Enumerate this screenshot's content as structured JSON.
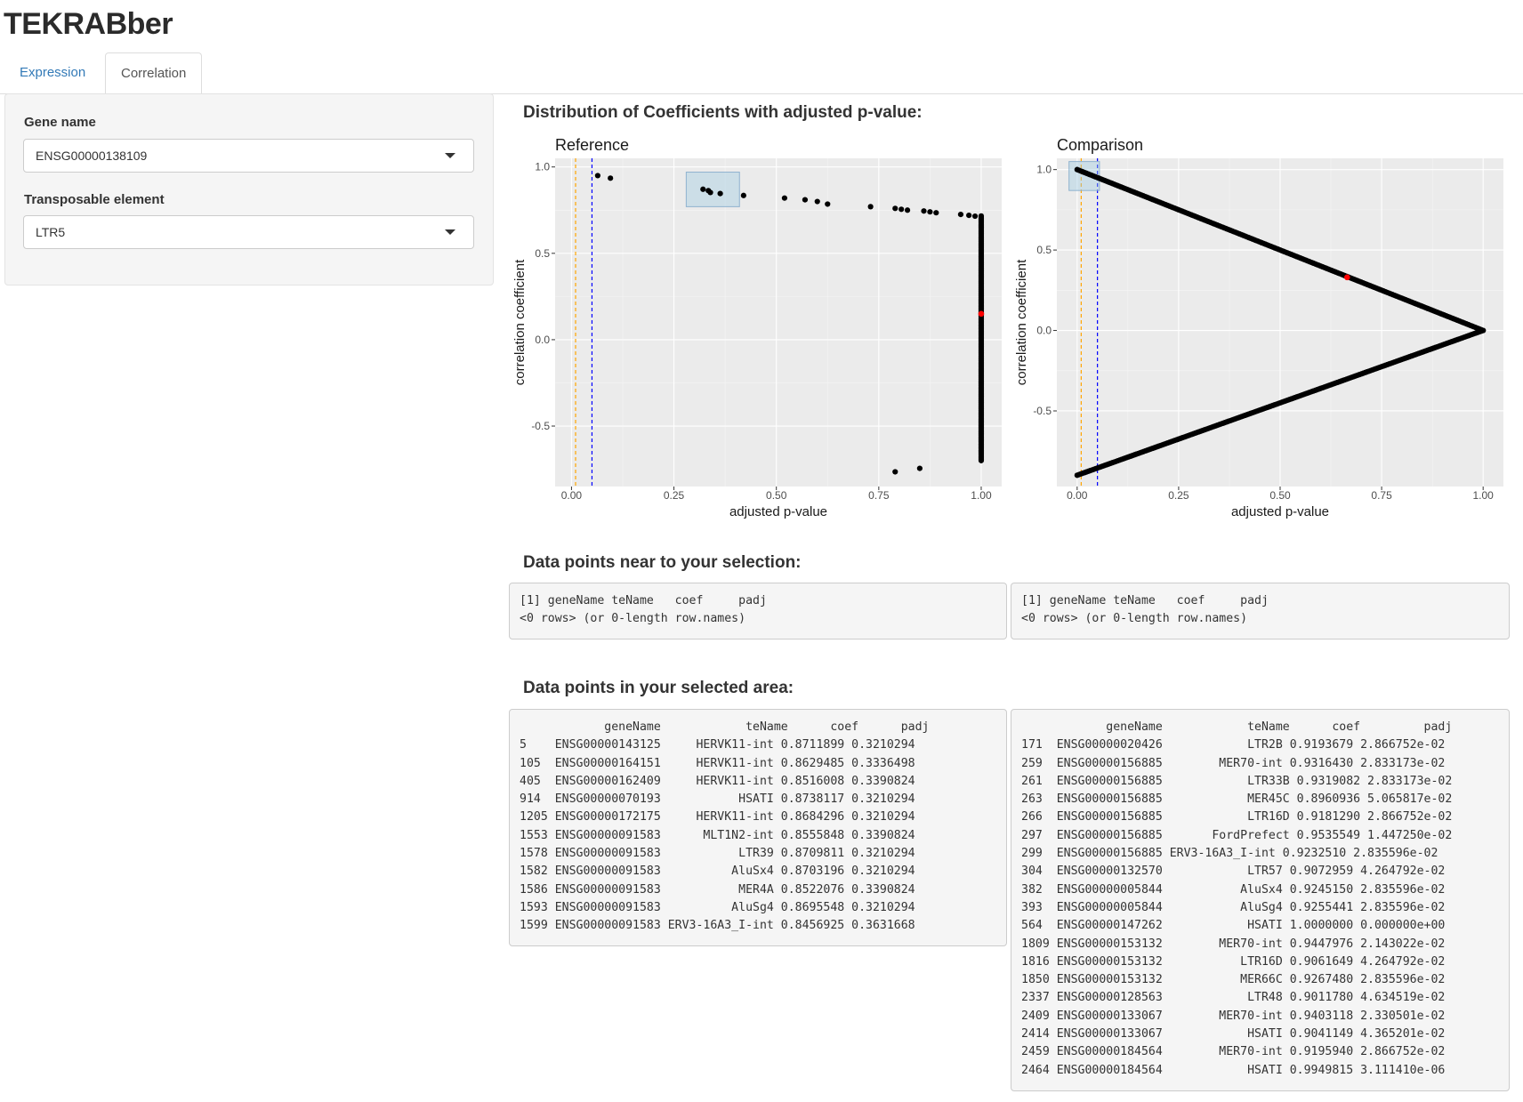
{
  "app": {
    "title": "TEKRABber"
  },
  "tabs": [
    {
      "label": "Expression",
      "active": false
    },
    {
      "label": "Correlation",
      "active": true
    }
  ],
  "sidebar": {
    "gene": {
      "label": "Gene name",
      "value": "ENSG00000138109"
    },
    "te": {
      "label": "Transposable element",
      "value": "LTR5"
    }
  },
  "section_distribution": "Distribution of Coefficients with adjusted p-value:",
  "section_near": "Data points near to your selection:",
  "section_area": "Data points in your selected area:",
  "colors": {
    "points": "#000000",
    "highlight": "#ff0000",
    "orange_line": "#ffa500",
    "blue_line": "#0000ff",
    "brush": "#9ecae1",
    "panel": "#ebebeb",
    "link": "#337ab7"
  },
  "chart_data": [
    {
      "type": "scatter",
      "title": "Reference",
      "xlabel": "adjusted p-value",
      "ylabel": "correlation coefficient",
      "xlim": [
        -0.04,
        1.05
      ],
      "ylim": [
        -0.85,
        1.05
      ],
      "xticks": [
        0,
        0.25,
        0.5,
        0.75,
        1.0
      ],
      "xtick_labels": [
        "0.00",
        "0.25",
        "0.50",
        "0.75",
        "1.00"
      ],
      "yticks": [
        -0.5,
        0,
        0.5,
        1.0
      ],
      "ytick_labels": [
        "-0.5",
        "0.0",
        "0.5",
        "1.0"
      ],
      "grid": true,
      "vlines": [
        {
          "x": 0.01,
          "color": "#ffa500"
        },
        {
          "x": 0.05,
          "color": "#0000ff"
        }
      ],
      "brush": {
        "x": [
          0.28,
          0.41
        ],
        "y": [
          0.77,
          0.97
        ]
      },
      "points": [
        [
          0.064,
          0.95
        ],
        [
          0.095,
          0.935
        ],
        [
          0.321,
          0.871
        ],
        [
          0.334,
          0.863
        ],
        [
          0.339,
          0.852
        ],
        [
          0.363,
          0.846
        ],
        [
          0.42,
          0.835
        ],
        [
          0.52,
          0.82
        ],
        [
          0.57,
          0.81
        ],
        [
          0.6,
          0.8
        ],
        [
          0.625,
          0.785
        ],
        [
          0.73,
          0.77
        ],
        [
          0.79,
          0.76
        ],
        [
          0.805,
          0.755
        ],
        [
          0.82,
          0.75
        ],
        [
          0.86,
          0.745
        ],
        [
          0.875,
          0.74
        ],
        [
          0.89,
          0.735
        ],
        [
          0.95,
          0.725
        ],
        [
          0.97,
          0.72
        ],
        [
          0.985,
          0.715
        ],
        [
          0.79,
          -0.765
        ],
        [
          0.85,
          -0.745
        ]
      ],
      "vertical_band": {
        "x": 1.0,
        "y": [
          -0.7,
          0.72
        ]
      },
      "highlight": [
        [
          1.0,
          0.15
        ]
      ]
    },
    {
      "type": "scatter",
      "title": "Comparison",
      "xlabel": "adjusted p-value",
      "ylabel": "correlation coefficient",
      "xlim": [
        -0.05,
        1.05
      ],
      "ylim": [
        -0.97,
        1.07
      ],
      "xticks": [
        0,
        0.25,
        0.5,
        0.75,
        1.0
      ],
      "xtick_labels": [
        "0.00",
        "0.25",
        "0.50",
        "0.75",
        "1.00"
      ],
      "yticks": [
        -0.5,
        0,
        0.5,
        1.0
      ],
      "ytick_labels": [
        "-0.5",
        "0.0",
        "0.5",
        "1.0"
      ],
      "grid": true,
      "vlines": [
        {
          "x": 0.01,
          "color": "#ffa500"
        },
        {
          "x": 0.05,
          "color": "#0000ff"
        }
      ],
      "brush": {
        "x": [
          -0.02,
          0.055
        ],
        "y": [
          0.87,
          1.05
        ]
      },
      "curve": {
        "from": [
          0.0,
          1.0
        ],
        "vertex": [
          1.0,
          0.0
        ],
        "to": [
          0.0,
          -0.9
        ]
      },
      "highlight": [
        [
          0.665,
          0.33
        ]
      ]
    }
  ],
  "near_reference": [
    "[1] geneName teName   coef     padj",
    "<0 rows> (or 0-length row.names)"
  ],
  "near_comparison": [
    "[1] geneName teName   coef     padj",
    "<0 rows> (or 0-length row.names)"
  ],
  "area_reference": [
    "            geneName            teName      coef      padj",
    "5    ENSG00000143125     HERVK11-int 0.8711899 0.3210294",
    "105  ENSG00000164151     HERVK11-int 0.8629485 0.3336498",
    "405  ENSG00000162409     HERVK11-int 0.8516008 0.3390824",
    "914  ENSG00000070193           HSATI 0.8738117 0.3210294",
    "1205 ENSG00000172175     HERVK11-int 0.8684296 0.3210294",
    "1553 ENSG00000091583      MLT1N2-int 0.8555848 0.3390824",
    "1578 ENSG00000091583           LTR39 0.8709811 0.3210294",
    "1582 ENSG00000091583          AluSx4 0.8703196 0.3210294",
    "1586 ENSG00000091583           MER4A 0.8522076 0.3390824",
    "1593 ENSG00000091583          AluSg4 0.8695548 0.3210294",
    "1599 ENSG00000091583 ERV3-16A3_I-int 0.8456925 0.3631668"
  ],
  "area_comparison": [
    "            geneName            teName      coef         padj",
    "171  ENSG00000020426            LTR2B 0.9193679 2.866752e-02",
    "259  ENSG00000156885        MER70-int 0.9316430 2.833173e-02",
    "261  ENSG00000156885            LTR33B 0.9319082 2.833173e-02",
    "263  ENSG00000156885            MER45C 0.8960936 5.065817e-02",
    "266  ENSG00000156885            LTR16D 0.9181290 2.866752e-02",
    "297  ENSG00000156885       FordPrefect 0.9535549 1.447250e-02",
    "299  ENSG00000156885 ERV3-16A3_I-int 0.9232510 2.835596e-02",
    "304  ENSG00000132570            LTR57 0.9072959 4.264792e-02",
    "382  ENSG00000005844           AluSx4 0.9245150 2.835596e-02",
    "393  ENSG00000005844           AluSg4 0.9255441 2.835596e-02",
    "564  ENSG00000147262            HSATI 1.0000000 0.000000e+00",
    "1809 ENSG00000153132        MER70-int 0.9447976 2.143022e-02",
    "1816 ENSG00000153132           LTR16D 0.9061649 4.264792e-02",
    "1850 ENSG00000153132           MER66C 0.9267480 2.835596e-02",
    "2337 ENSG00000128563            LTR48 0.9011780 4.634519e-02",
    "2409 ENSG00000133067        MER70-int 0.9403118 2.330501e-02",
    "2414 ENSG00000133067            HSATI 0.9041149 4.365201e-02",
    "2459 ENSG00000184564        MER70-int 0.9195940 2.866752e-02",
    "2464 ENSG00000184564            HSATI 0.9949815 3.111410e-06"
  ]
}
